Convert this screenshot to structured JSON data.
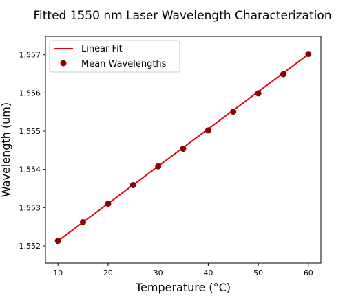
{
  "chart_data": {
    "type": "scatter",
    "title": "Fitted 1550 nm Laser Wavelength Characterization",
    "xlabel": "Temperature (°C)",
    "ylabel": "Wavelength (um)",
    "xlim": [
      7.5,
      62.5
    ],
    "ylim": [
      1.55155,
      1.55748
    ],
    "x_ticks": [
      10,
      20,
      30,
      40,
      50,
      60
    ],
    "y_ticks": [
      1.552,
      1.553,
      1.554,
      1.555,
      1.556,
      1.557
    ],
    "x_tick_labels": [
      "10",
      "20",
      "30",
      "40",
      "50",
      "60"
    ],
    "y_tick_labels": [
      "1.552",
      "1.553",
      "1.554",
      "1.555",
      "1.556",
      "1.557"
    ],
    "grid": false,
    "legend_position": "top-left",
    "series": [
      {
        "name": "Linear Fit",
        "kind": "line",
        "color": "#e8000b",
        "x": [
          10,
          60
        ],
        "y": [
          1.55213,
          1.55701
        ]
      },
      {
        "name": "Mean Wavelengths",
        "kind": "scatter",
        "color": "#8b0000",
        "x": [
          10,
          15,
          20,
          25,
          30,
          35,
          40,
          45,
          50,
          55,
          60
        ],
        "y": [
          1.55213,
          1.55262,
          1.5531,
          1.55359,
          1.55408,
          1.55454,
          1.55502,
          1.55551,
          1.55599,
          1.55649,
          1.55702
        ]
      }
    ]
  }
}
